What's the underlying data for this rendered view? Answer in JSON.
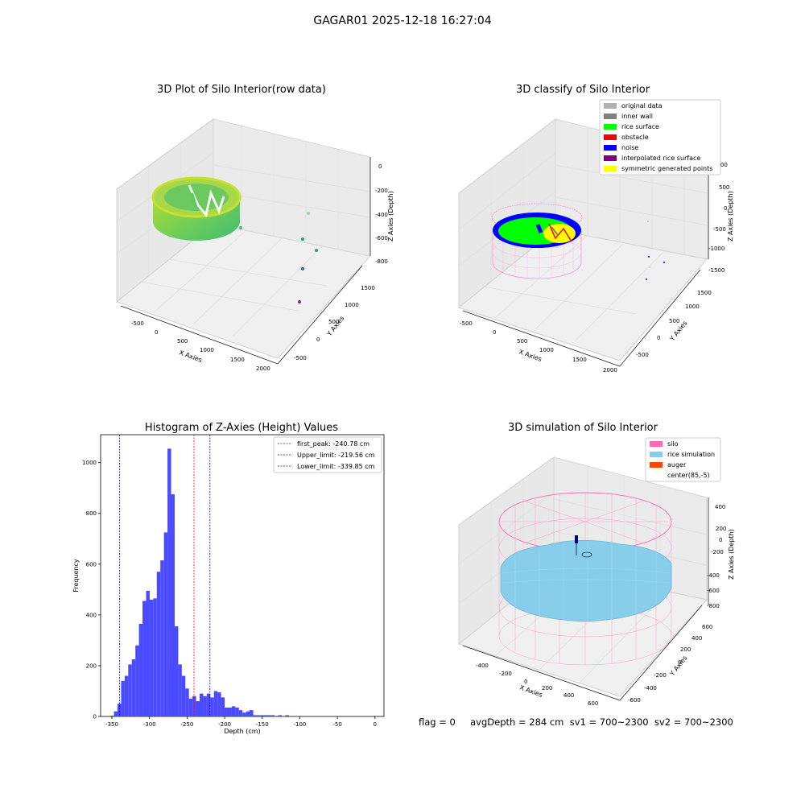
{
  "figure": {
    "title": "GAGAR01 2025-12-18 16:27:04",
    "status": "flag = 0     avgDepth = 284 cm  sv1 = 700~2300  sv2 = 700~2300"
  },
  "chart_data": [
    {
      "type": "scatter",
      "subtype": "3d",
      "title": "3D Plot of Silo Interior(row data)",
      "xlabel": "X Axies",
      "ylabel": "Y Axies",
      "zlabel": "Z Axies (Depth)",
      "xticks": [
        "-500",
        "0",
        "500",
        "1000",
        "1500",
        "2000"
      ],
      "yticks": [
        "-500",
        "0",
        "500",
        "1000",
        "1500"
      ],
      "zticks": [
        "0",
        "-200",
        "-400",
        "-600",
        "-800"
      ],
      "colormap": "viridis"
    },
    {
      "type": "scatter",
      "subtype": "3d",
      "title": "3D classify of Silo Interior",
      "xlabel": "X Axies",
      "ylabel": "Y Axies",
      "zlabel": "Z Axies (Depth)",
      "xticks": [
        "-500",
        "0",
        "500",
        "1000",
        "1500",
        "2000"
      ],
      "yticks": [
        "-500",
        "0",
        "500",
        "1000",
        "1500"
      ],
      "zticks": [
        "1000",
        "500",
        "0",
        "-500",
        "-1000",
        "-1500"
      ],
      "legend": [
        {
          "label": "original data",
          "color": "#b0b0b0"
        },
        {
          "label": "inner wall",
          "color": "#808080"
        },
        {
          "label": "rice surface",
          "color": "#00ff00"
        },
        {
          "label": "obstacle",
          "color": "#ff0000"
        },
        {
          "label": "noise",
          "color": "#0000ff"
        },
        {
          "label": "interpolated rice surface",
          "color": "#800080"
        },
        {
          "label": "symmetric generated points",
          "color": "#ffff00"
        }
      ]
    },
    {
      "type": "bar",
      "subtype": "histogram",
      "title": "Histogram of Z-Axies (Height) Values",
      "xlabel": "Depth (cm)",
      "ylabel": "Frequency",
      "xlim": [
        -365,
        12
      ],
      "ylim": [
        0,
        1110
      ],
      "xticks": [
        -350,
        -300,
        -250,
        -200,
        -150,
        -100,
        -50,
        0
      ],
      "yticks": [
        0,
        200,
        400,
        600,
        800,
        1000
      ],
      "bar_color": "#4a4aff",
      "bin_edges_start": -352,
      "bin_width": 4.75,
      "values": [
        3,
        20,
        50,
        140,
        160,
        205,
        225,
        280,
        365,
        455,
        495,
        460,
        465,
        570,
        615,
        725,
        1055,
        875,
        355,
        205,
        160,
        110,
        70,
        80,
        60,
        90,
        80,
        90,
        75,
        100,
        95,
        75,
        35,
        35,
        40,
        35,
        25,
        15,
        20,
        25,
        5,
        5,
        5,
        5,
        5,
        5,
        0,
        5,
        0,
        5
      ],
      "annotations": [
        {
          "name": "first_peak",
          "value": -240.78,
          "label": "first_peak: -240.78 cm",
          "color": "#ff0000"
        },
        {
          "name": "Upper_limit",
          "value": -219.56,
          "label": "Upper_limit: -219.56 cm",
          "color": "#0000cc"
        },
        {
          "name": "Lower_limit",
          "value": -339.85,
          "label": "Lower_limit: -339.85 cm",
          "color": "#0000cc"
        }
      ],
      "legend_position": "top-right"
    },
    {
      "type": "scatter",
      "subtype": "3d",
      "title": "3D simulation of Silo Interior",
      "xlabel": "X Axies",
      "ylabel": "Y Axies",
      "zlabel": "Z Axies (Depth)",
      "xticks": [
        "-400",
        "-200",
        "0",
        "200",
        "400",
        "600"
      ],
      "yticks": [
        "-600",
        "-400",
        "-200",
        "0",
        "200",
        "400",
        "600"
      ],
      "zticks": [
        "400",
        "200",
        "0",
        "-200",
        "-400",
        "-600",
        "-800"
      ],
      "legend": [
        {
          "label": "silo",
          "color": "#ff69b4"
        },
        {
          "label": "rice simulation",
          "color": "#87ceeb"
        },
        {
          "label": "auger",
          "color": "#ff4500"
        },
        {
          "label": "center(85,-5)",
          "color": ""
        }
      ]
    }
  ]
}
